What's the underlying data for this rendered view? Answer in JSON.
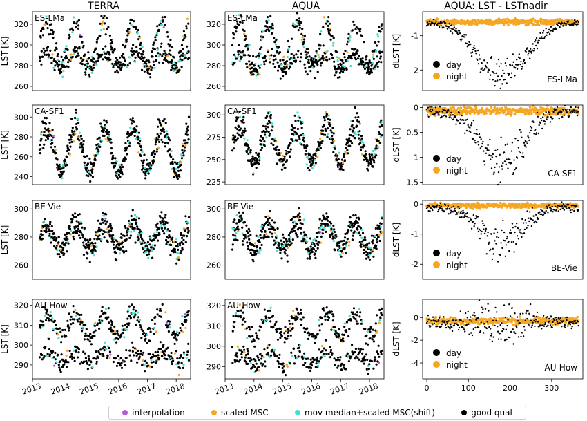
{
  "colors": {
    "interpolation": "#b25bd6",
    "scaled_msc": "#f5a623",
    "mov_median": "#40e0d0",
    "good_qual": "#000000",
    "day": "#000000",
    "night": "#f5a623"
  },
  "column_titles": [
    "TERRA",
    "AQUA",
    "AQUA: LST - LSTnadir"
  ],
  "legend": {
    "items": [
      {
        "label": "interpolation",
        "color_key": "interpolation"
      },
      {
        "label": "scaled MSC",
        "color_key": "scaled_msc"
      },
      {
        "label": "mov median+scaled MSC(shift)",
        "color_key": "mov_median"
      },
      {
        "label": "good qual",
        "color_key": "good_qual"
      }
    ]
  },
  "chart_data": [
    {
      "type": "scatter",
      "site": "ES-LMa",
      "sensor": "TERRA",
      "ylabel": "LST [K]",
      "ylim": [
        256,
        332
      ],
      "yticks": [
        260,
        280,
        300,
        320
      ],
      "xlim": [
        2013.0,
        2018.5
      ],
      "xticks": [
        "2013",
        "2014",
        "2015",
        "2016",
        "2017",
        "2018"
      ],
      "day_mean": 302,
      "day_amp": 19,
      "night_mean": 285,
      "night_amp": 8,
      "noise": 5
    },
    {
      "type": "scatter",
      "site": "ES-LMa",
      "sensor": "AQUA",
      "ylabel": "",
      "ylim": [
        256,
        332
      ],
      "yticks": [
        260,
        280,
        300,
        320
      ],
      "xlim": [
        2013.0,
        2018.5
      ],
      "xticks": [
        "2013",
        "2014",
        "2015",
        "2016",
        "2017",
        "2018"
      ],
      "day_mean": 302,
      "day_amp": 19,
      "night_mean": 283,
      "night_amp": 8,
      "noise": 5
    },
    {
      "type": "scatter",
      "site": "ES-LMa",
      "sensor": "AQUA: LST - LSTnadir",
      "ylabel": "dLST [K]",
      "ylim": [
        -2.6,
        -0.3
      ],
      "yticks": [
        -2,
        -1
      ],
      "xlim": [
        -10,
        375
      ],
      "series": [
        {
          "name": "day",
          "color_key": "day"
        },
        {
          "name": "night",
          "color_key": "night"
        }
      ],
      "day_base": -0.6,
      "day_dip": -1.5,
      "night_base": -0.6,
      "dip_width": 85,
      "noise": 0.2
    },
    {
      "type": "scatter",
      "site": "CA-SF1",
      "sensor": "TERRA",
      "ylabel": "LST [K]",
      "ylim": [
        232,
        312
      ],
      "yticks": [
        240,
        260,
        280,
        300
      ],
      "xlim": [
        2013.0,
        2018.5
      ],
      "xticks": [
        "2013",
        "2014",
        "2015",
        "2016",
        "2017",
        "2018"
      ],
      "day_mean": 270,
      "day_amp": 25,
      "night_mean": 265,
      "night_amp": 20,
      "noise": 6
    },
    {
      "type": "scatter",
      "site": "CA-SF1",
      "sensor": "AQUA",
      "ylabel": "",
      "ylim": [
        222,
        311
      ],
      "yticks": [
        225,
        250,
        275,
        300
      ],
      "xlim": [
        2013.0,
        2018.5
      ],
      "xticks": [
        "2013",
        "2014",
        "2015",
        "2016",
        "2017",
        "2018"
      ],
      "day_mean": 272,
      "day_amp": 25,
      "night_mean": 262,
      "night_amp": 18,
      "noise": 6
    },
    {
      "type": "scatter",
      "site": "CA-SF1",
      "sensor": "AQUA: LST - LSTnadir",
      "ylabel": "dLST [K]",
      "ylim": [
        -1.55,
        0.05
      ],
      "yticks": [
        -1.5,
        -1.0,
        -0.5,
        0.0
      ],
      "xlim": [
        -10,
        375
      ],
      "series": [
        {
          "name": "day",
          "color_key": "day"
        },
        {
          "name": "night",
          "color_key": "night"
        }
      ],
      "day_base": -0.08,
      "day_dip": -1.0,
      "night_base": -0.07,
      "dip_width": 75,
      "noise": 0.22
    },
    {
      "type": "scatter",
      "site": "BE-Vie",
      "sensor": "TERRA",
      "ylabel": "LST [K]",
      "ylim": [
        250,
        306
      ],
      "yticks": [
        260,
        280,
        300
      ],
      "xlim": [
        2013.0,
        2018.5
      ],
      "xticks": [
        "2013",
        "2014",
        "2015",
        "2016",
        "2017",
        "2018"
      ],
      "day_mean": 282,
      "day_amp": 10,
      "night_mean": 278,
      "night_amp": 8,
      "noise": 5
    },
    {
      "type": "scatter",
      "site": "BE-Vie",
      "sensor": "AQUA",
      "ylabel": "",
      "ylim": [
        250,
        306
      ],
      "yticks": [
        260,
        280,
        300
      ],
      "xlim": [
        2013.0,
        2018.5
      ],
      "xticks": [
        "2013",
        "2014",
        "2015",
        "2016",
        "2017",
        "2018"
      ],
      "day_mean": 283,
      "day_amp": 10,
      "night_mean": 278,
      "night_amp": 8,
      "noise": 5
    },
    {
      "type": "scatter",
      "site": "BE-Vie",
      "sensor": "AQUA: LST - LSTnadir",
      "ylabel": "dLST [K]",
      "ylim": [
        -2.5,
        0.12
      ],
      "yticks": [
        -2,
        -1,
        0
      ],
      "xlim": [
        -10,
        375
      ],
      "series": [
        {
          "name": "day",
          "color_key": "day"
        },
        {
          "name": "night",
          "color_key": "night"
        }
      ],
      "day_base": -0.1,
      "day_dip": -1.2,
      "night_base": -0.05,
      "dip_width": 70,
      "noise": 0.3
    },
    {
      "type": "scatter",
      "site": "AU-How",
      "sensor": "TERRA",
      "ylabel": "LST [K]",
      "ylim": [
        283,
        323
      ],
      "yticks": [
        290,
        300,
        310,
        320
      ],
      "xlim": [
        2013.0,
        2018.5
      ],
      "xticks": [
        "2013",
        "2014",
        "2015",
        "2016",
        "2017",
        "2018"
      ],
      "day_mean": 310,
      "day_amp": 6,
      "night_mean": 294,
      "night_amp": 3,
      "noise": 3
    },
    {
      "type": "scatter",
      "site": "AU-How",
      "sensor": "AQUA",
      "ylabel": "",
      "ylim": [
        284,
        323
      ],
      "yticks": [
        290,
        300,
        310,
        320
      ],
      "xlim": [
        2013.0,
        2018.5
      ],
      "xticks": [
        "2013",
        "2014",
        "2015",
        "2016",
        "2017",
        "2018"
      ],
      "day_mean": 310,
      "day_amp": 6,
      "night_mean": 294,
      "night_amp": 3,
      "noise": 3
    },
    {
      "type": "scatter",
      "site": "AU-How",
      "sensor": "AQUA: LST - LSTnadir",
      "ylabel": "dLST [K]",
      "ylim": [
        -5.4,
        1.6
      ],
      "yticks": [
        -4,
        -2,
        0
      ],
      "xlim": [
        -10,
        375
      ],
      "xticks": [
        0,
        100,
        200,
        300
      ],
      "series": [
        {
          "name": "day",
          "color_key": "day"
        },
        {
          "name": "night",
          "color_key": "night"
        }
      ],
      "day_base": -0.4,
      "day_dip": 0.0,
      "night_base": -0.3,
      "dip_width": 80,
      "noise": 1.0
    }
  ]
}
